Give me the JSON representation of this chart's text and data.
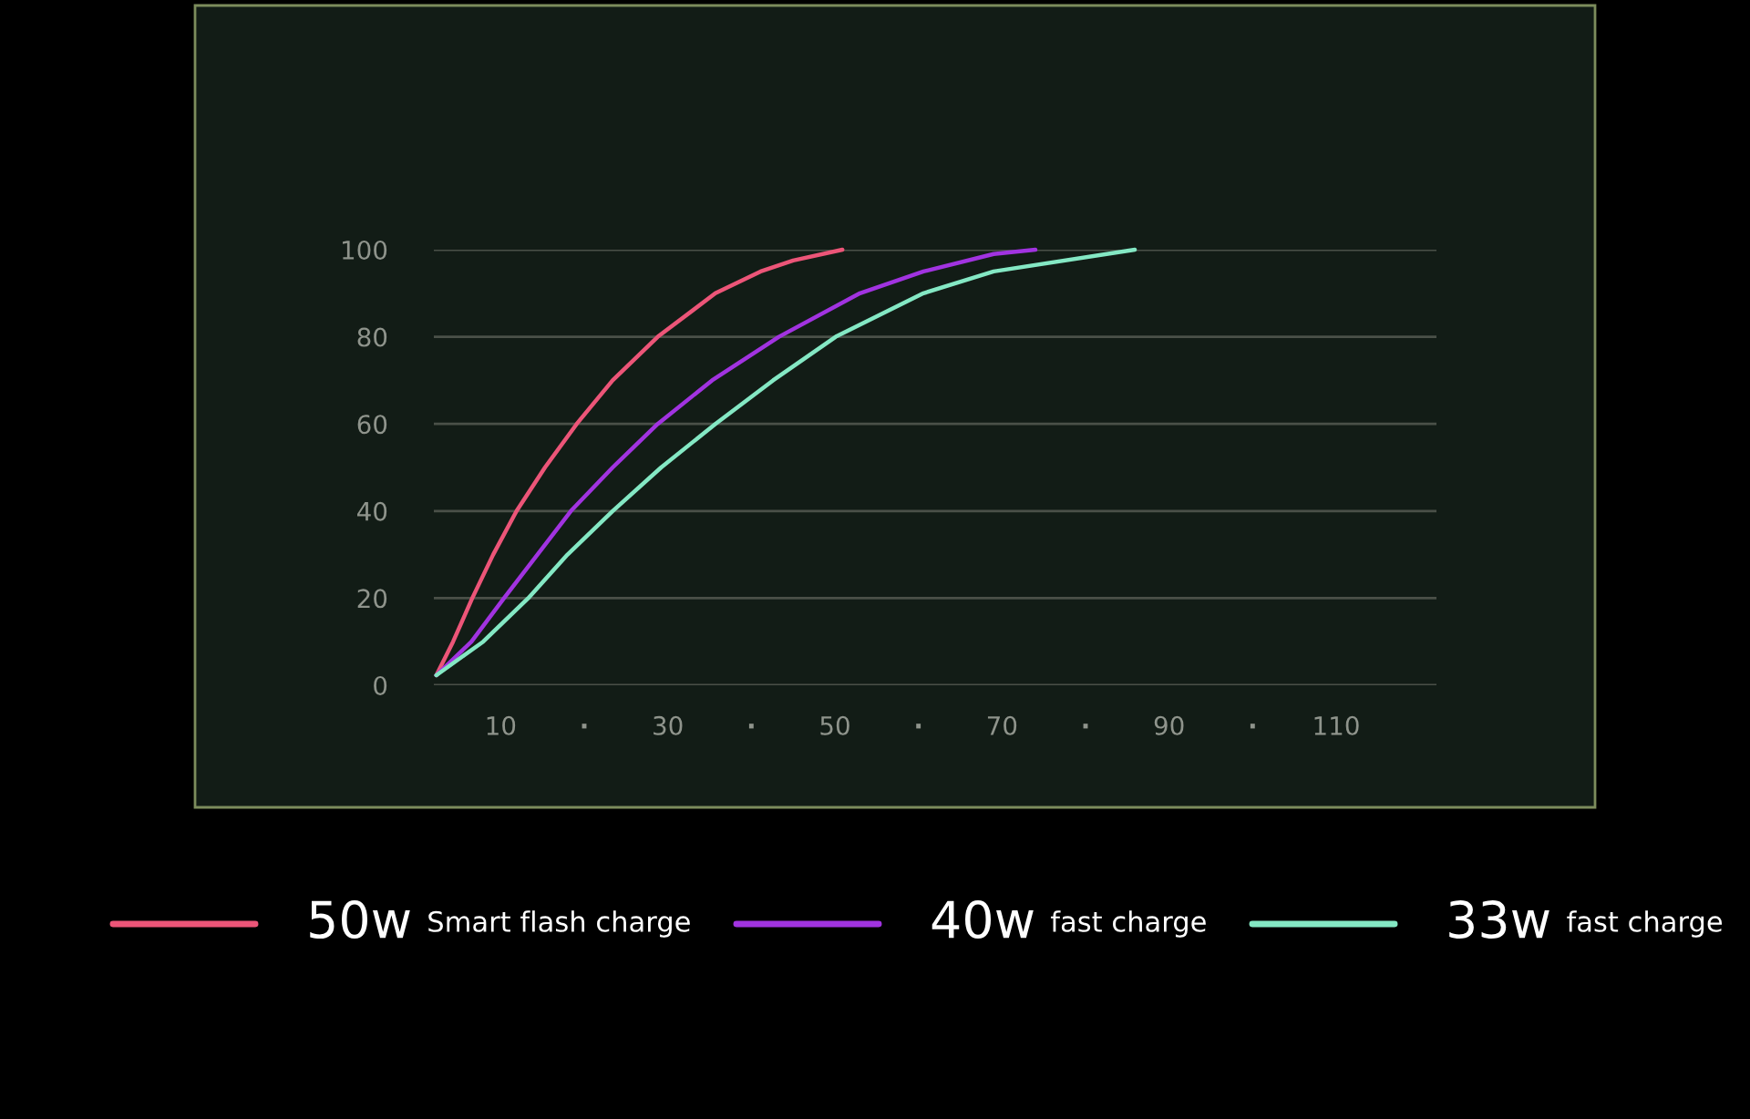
{
  "chart_data": {
    "type": "line",
    "series": [
      {
        "name": "50w Smart flash charge",
        "color": "#ec5578",
        "x": [
          2.3,
          4.3,
          6.6,
          9.1,
          11.9,
          15.3,
          19.1,
          23.4,
          28.8,
          35.7,
          41.1,
          45,
          50.9
        ],
        "values": [
          2.3,
          10,
          20,
          30,
          40,
          50,
          60,
          70,
          80,
          90,
          95,
          97.5,
          100
        ]
      },
      {
        "name": "40w fast charge",
        "color": "#a133e0",
        "x": [
          2.3,
          6.5,
          10.4,
          14.4,
          18.4,
          23.4,
          28.8,
          35.3,
          43.3,
          53,
          60.6,
          69,
          74
        ],
        "values": [
          2.3,
          10,
          20,
          30,
          40,
          50,
          60,
          70,
          80,
          90,
          95,
          99,
          100
        ]
      },
      {
        "name": "33w fast charge",
        "color": "#84e8c4",
        "x": [
          2.3,
          7.9,
          13.3,
          18,
          23.4,
          29.2,
          35.7,
          42.6,
          50.1,
          60.6,
          69,
          85.9
        ],
        "values": [
          2.3,
          10,
          20,
          30,
          40,
          50,
          60,
          70,
          80,
          90,
          95,
          100
        ]
      }
    ],
    "xlim": [
      2,
      122
    ],
    "xticks": [
      10,
      {
        "value": 20,
        "label": "·"
      },
      30,
      {
        "value": 40,
        "label": "·"
      },
      50,
      {
        "value": 60,
        "label": "·"
      },
      70,
      {
        "value": 80,
        "label": "·"
      },
      90,
      {
        "value": 100,
        "label": "·"
      },
      110
    ],
    "ylim": [
      0,
      100
    ],
    "yticks": [
      0,
      20,
      40,
      60,
      80,
      100
    ],
    "grid": "y",
    "legend": "bottom",
    "marker": "none",
    "line_style": "solid"
  }
}
